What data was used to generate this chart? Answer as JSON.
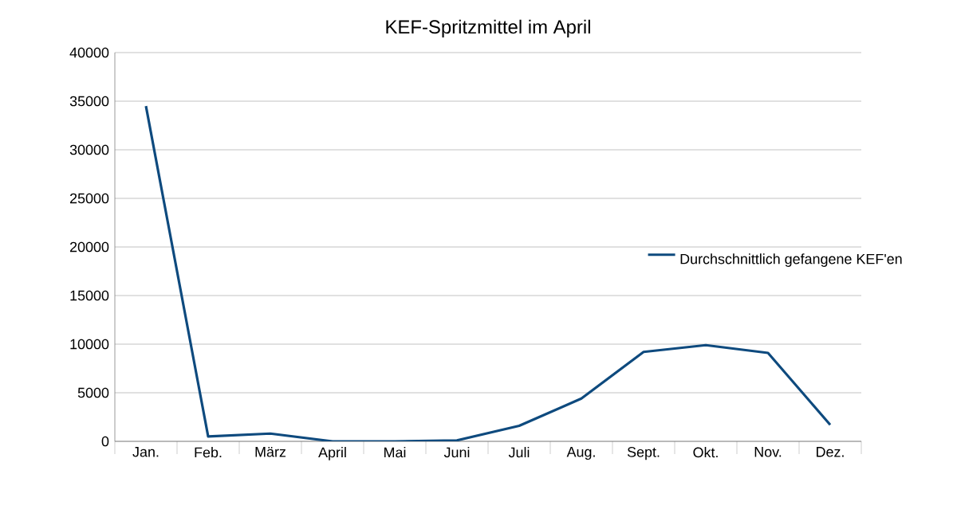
{
  "chart_data": {
    "type": "line",
    "title": "KEF-Spritzmittel im April",
    "categories": [
      "Jan.",
      "Feb.",
      "März",
      "April",
      "Mai",
      "Juni",
      "Juli",
      "Aug.",
      "Sept.",
      "Okt.",
      "Nov.",
      "Dez."
    ],
    "series": [
      {
        "name": "Durchschnittlich gefangene KEF'en",
        "color": "#0e4a7e",
        "values": [
          34500,
          500,
          800,
          0,
          0,
          100,
          1600,
          4400,
          9200,
          9900,
          9100,
          1700
        ]
      }
    ],
    "ylim": [
      0,
      40000
    ],
    "yticks": [
      0,
      5000,
      10000,
      15000,
      20000,
      25000,
      30000,
      35000,
      40000
    ],
    "grid": "y",
    "legend": "right",
    "marker": "none",
    "line_style": "solid"
  }
}
